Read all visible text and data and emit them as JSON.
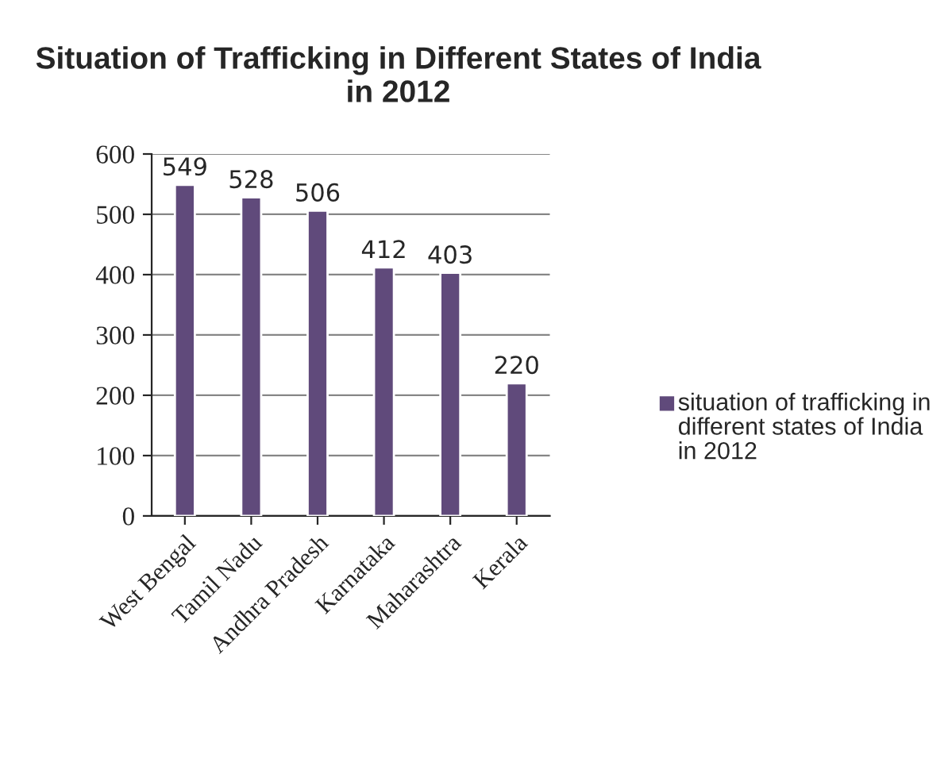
{
  "chart_data": {
    "type": "bar",
    "title": "Situation of Trafficking in Different States of India in 2012",
    "categories": [
      "West Bengal",
      "Tamil Nadu",
      "Andhra Pradesh",
      "Karnataka",
      "Maharashtra",
      "Kerala"
    ],
    "series": [
      {
        "name": "situation of trafficking in different states of India in 2012",
        "color": "#604a7b",
        "values": [
          549,
          528,
          506,
          412,
          403,
          220
        ]
      }
    ],
    "ylim": [
      0,
      600
    ],
    "yticks": [
      0,
      100,
      200,
      300,
      400,
      500,
      600
    ],
    "grid": "y",
    "legend": "right",
    "data_labels": true
  }
}
